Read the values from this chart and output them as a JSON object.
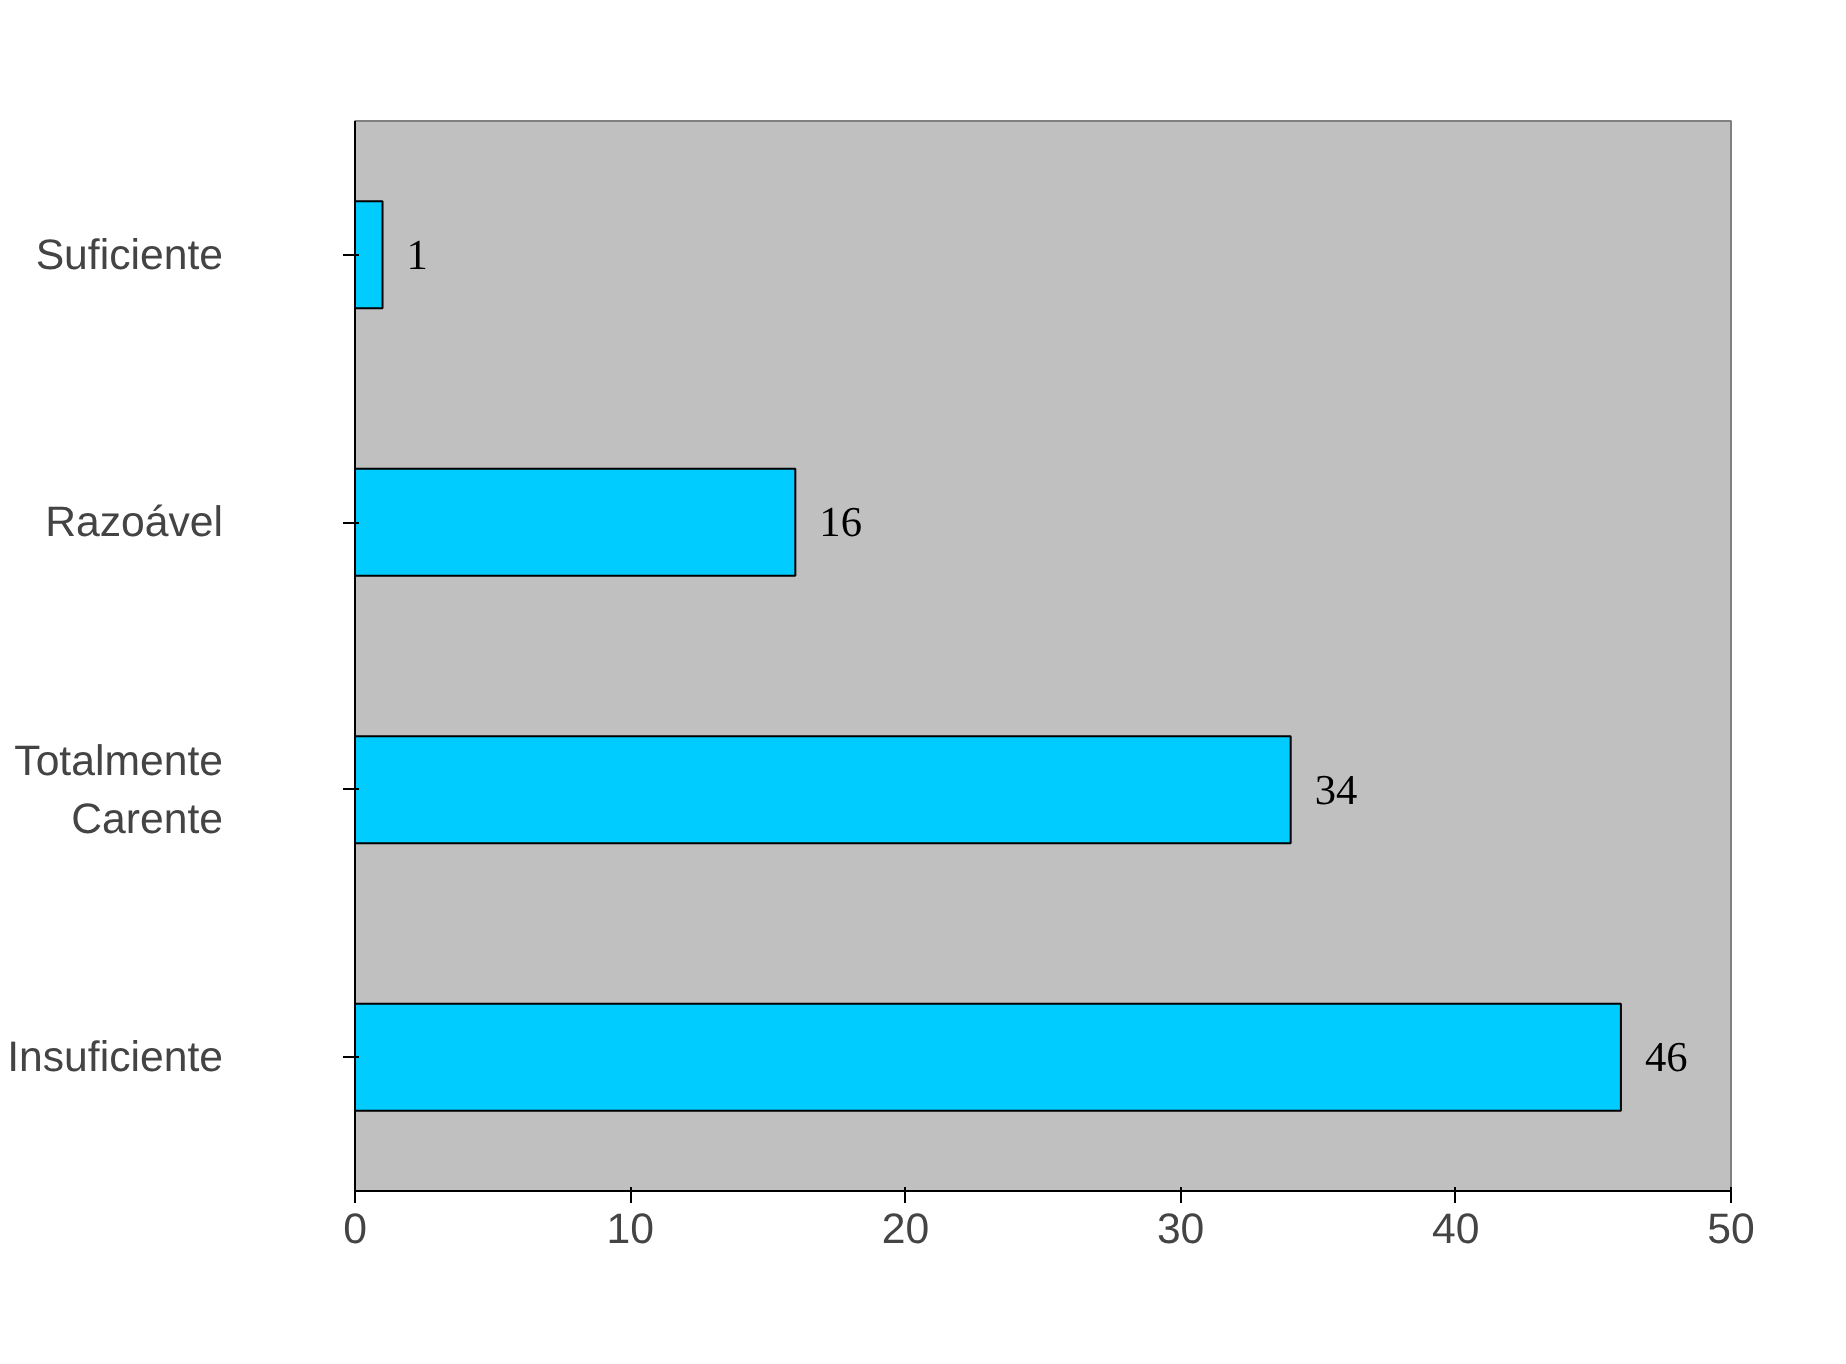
{
  "chart_data": {
    "type": "bar",
    "orientation": "horizontal",
    "categories": [
      "Suficiente",
      "Razoável",
      "Totalmente Carente",
      "Insuficiente"
    ],
    "values": [
      1,
      16,
      34,
      46
    ],
    "color": "#00ccff",
    "xlim": [
      0,
      50
    ],
    "xticks": [
      0,
      10,
      20,
      30,
      40,
      50
    ],
    "grid": false,
    "data_labels": true
  }
}
